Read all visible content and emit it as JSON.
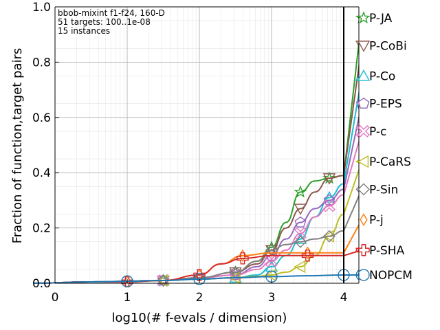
{
  "chart_data": {
    "type": "line",
    "title": "",
    "xlabel": "log10(# f-evals / dimension)",
    "ylabel": "Fraction of function,target pairs",
    "xlim": [
      0,
      4.25
    ],
    "ylim": [
      0,
      1.0
    ],
    "x_ticks": [
      "0",
      "1",
      "2",
      "3",
      "4"
    ],
    "y_ticks": [
      "0.0",
      "0.2",
      "0.4",
      "0.6",
      "0.8",
      "1.0"
    ],
    "grid": true,
    "annotation_lines": [
      "bbob-mixint f1-f24, 160-D",
      "51 targets: 100..1e-08",
      "15 instances"
    ],
    "budget_line_x": 4.0,
    "series": [
      {
        "name": "P-JA",
        "color": "#2ca02c",
        "marker": "star",
        "x": [
          -0.3,
          0.5,
          1.5,
          2.0,
          2.5,
          2.8,
          3.0,
          3.2,
          3.4,
          3.6,
          3.8,
          4.0,
          4.25
        ],
        "y": [
          0.0,
          0.005,
          0.01,
          0.02,
          0.04,
          0.08,
          0.13,
          0.22,
          0.33,
          0.37,
          0.38,
          0.39,
          0.96
        ]
      },
      {
        "name": "P-CoBi",
        "color": "#8c564b",
        "marker": "triangle-down",
        "x": [
          -0.3,
          0.5,
          1.5,
          2.0,
          2.5,
          2.8,
          3.0,
          3.2,
          3.4,
          3.6,
          3.8,
          4.0,
          4.25
        ],
        "y": [
          0.0,
          0.005,
          0.01,
          0.02,
          0.04,
          0.07,
          0.12,
          0.2,
          0.27,
          0.33,
          0.38,
          0.39,
          0.86
        ]
      },
      {
        "name": "P-Co",
        "color": "#17becf",
        "marker": "triangle-up",
        "x": [
          -0.3,
          0.5,
          1.5,
          2.0,
          2.5,
          2.8,
          3.0,
          3.2,
          3.4,
          3.6,
          3.8,
          4.0,
          4.25
        ],
        "y": [
          0.0,
          0.005,
          0.01,
          0.015,
          0.02,
          0.03,
          0.06,
          0.1,
          0.16,
          0.24,
          0.31,
          0.36,
          0.75
        ]
      },
      {
        "name": "P-EPS",
        "color": "#9467bd",
        "marker": "pentagon",
        "x": [
          -0.3,
          0.5,
          1.5,
          2.0,
          2.5,
          2.8,
          3.0,
          3.2,
          3.4,
          3.6,
          3.8,
          4.0,
          4.25
        ],
        "y": [
          0.0,
          0.005,
          0.01,
          0.02,
          0.03,
          0.06,
          0.1,
          0.16,
          0.22,
          0.27,
          0.3,
          0.34,
          0.65
        ]
      },
      {
        "name": "P-c",
        "color": "#e377c2",
        "marker": "x",
        "x": [
          -0.3,
          0.5,
          1.5,
          2.0,
          2.5,
          2.8,
          3.0,
          3.2,
          3.4,
          3.6,
          3.8,
          4.0,
          4.25
        ],
        "y": [
          0.0,
          0.005,
          0.01,
          0.02,
          0.03,
          0.05,
          0.08,
          0.12,
          0.18,
          0.24,
          0.28,
          0.32,
          0.55
        ]
      },
      {
        "name": "P-CaRS",
        "color": "#bcbd22",
        "marker": "triangle-left",
        "x": [
          -0.3,
          0.5,
          1.5,
          2.0,
          2.5,
          2.8,
          3.0,
          3.2,
          3.4,
          3.6,
          3.8,
          4.0,
          4.25
        ],
        "y": [
          0.0,
          0.005,
          0.01,
          0.015,
          0.02,
          0.025,
          0.03,
          0.04,
          0.06,
          0.1,
          0.17,
          0.25,
          0.44
        ]
      },
      {
        "name": "P-Sin",
        "color": "#7f7f7f",
        "marker": "diamond",
        "x": [
          -0.3,
          0.5,
          1.5,
          2.0,
          2.5,
          2.8,
          3.0,
          3.2,
          3.4,
          3.6,
          3.8,
          4.0,
          4.25
        ],
        "y": [
          0.0,
          0.005,
          0.01,
          0.02,
          0.04,
          0.08,
          0.12,
          0.14,
          0.15,
          0.16,
          0.17,
          0.19,
          0.34
        ]
      },
      {
        "name": "P-j",
        "color": "#ff7f0e",
        "marker": "diamond-thin",
        "x": [
          -0.3,
          0.5,
          1.0,
          1.5,
          2.0,
          2.3,
          2.6,
          3.0,
          3.5,
          4.0,
          4.25
        ],
        "y": [
          0.0,
          0.005,
          0.005,
          0.01,
          0.03,
          0.07,
          0.1,
          0.11,
          0.11,
          0.11,
          0.23
        ]
      },
      {
        "name": "P-SHA",
        "color": "#d62728",
        "marker": "plus",
        "x": [
          -0.3,
          0.5,
          1.0,
          1.5,
          2.0,
          2.3,
          2.6,
          3.0,
          3.5,
          4.0,
          4.25
        ],
        "y": [
          0.0,
          0.005,
          0.005,
          0.01,
          0.03,
          0.07,
          0.09,
          0.1,
          0.1,
          0.1,
          0.12
        ]
      },
      {
        "name": "NOPCM",
        "color": "#1f77b4",
        "marker": "circle",
        "x": [
          -0.3,
          0.5,
          1.0,
          1.5,
          2.0,
          2.5,
          3.0,
          3.5,
          4.0,
          4.25
        ],
        "y": [
          0.0,
          0.005,
          0.007,
          0.01,
          0.015,
          0.02,
          0.024,
          0.027,
          0.03,
          0.03
        ]
      }
    ]
  }
}
